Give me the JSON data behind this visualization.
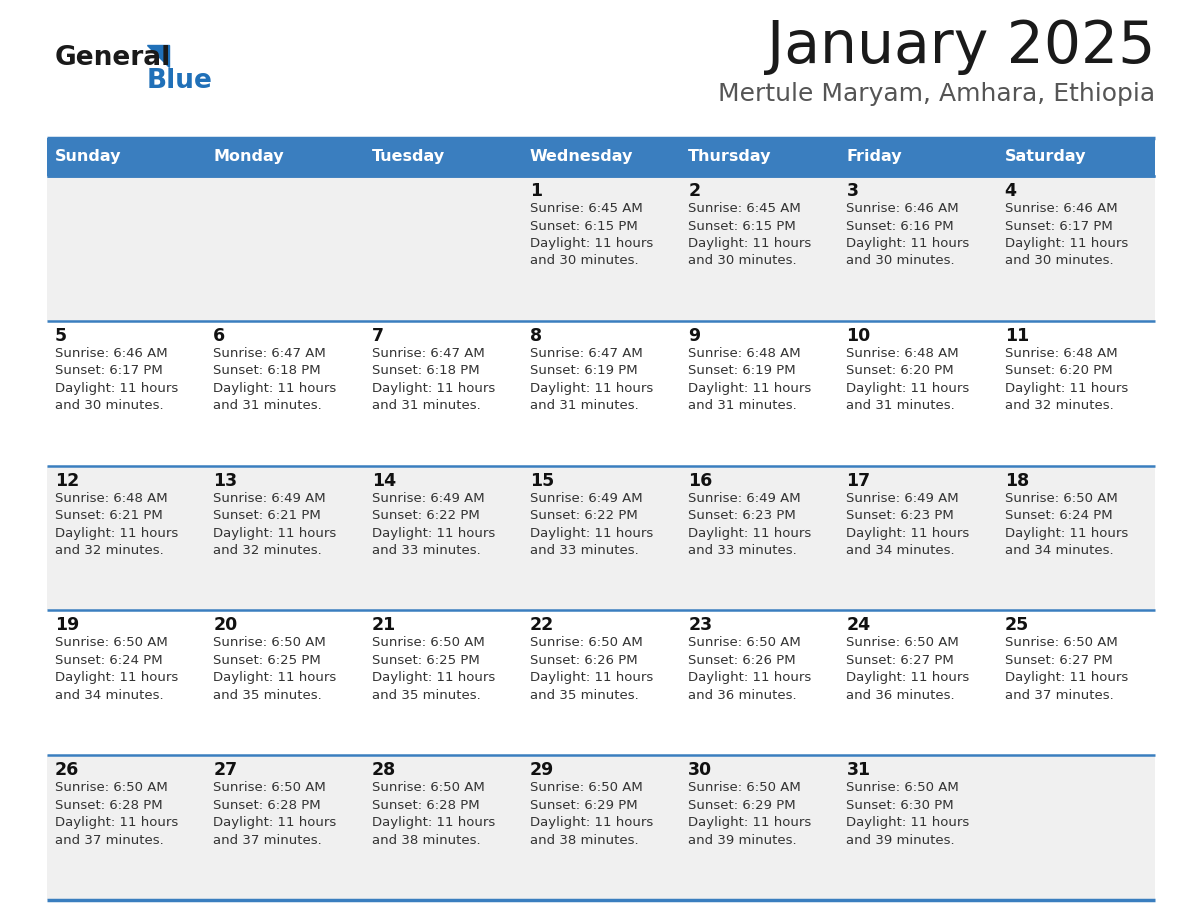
{
  "title": "January 2025",
  "subtitle": "Mertule Maryam, Amhara, Ethiopia",
  "days_of_week": [
    "Sunday",
    "Monday",
    "Tuesday",
    "Wednesday",
    "Thursday",
    "Friday",
    "Saturday"
  ],
  "header_bg": "#3a7ebf",
  "header_text": "#ffffff",
  "row_bg_even": "#f0f0f0",
  "row_bg_odd": "#ffffff",
  "cell_text_color": "#333333",
  "day_num_color": "#111111",
  "separator_color": "#3a7ebf",
  "title_color": "#1a1a1a",
  "subtitle_color": "#555555",
  "logo_general_color": "#1a1a1a",
  "logo_blue_color": "#2070b8",
  "logo_triangle_color": "#2070b8",
  "calendar_data": [
    [
      {
        "day": null,
        "sunrise": null,
        "sunset": null,
        "daylight_line1": null,
        "daylight_line2": null
      },
      {
        "day": null,
        "sunrise": null,
        "sunset": null,
        "daylight_line1": null,
        "daylight_line2": null
      },
      {
        "day": null,
        "sunrise": null,
        "sunset": null,
        "daylight_line1": null,
        "daylight_line2": null
      },
      {
        "day": "1",
        "sunrise": "Sunrise: 6:45 AM",
        "sunset": "Sunset: 6:15 PM",
        "daylight_line1": "Daylight: 11 hours",
        "daylight_line2": "and 30 minutes."
      },
      {
        "day": "2",
        "sunrise": "Sunrise: 6:45 AM",
        "sunset": "Sunset: 6:15 PM",
        "daylight_line1": "Daylight: 11 hours",
        "daylight_line2": "and 30 minutes."
      },
      {
        "day": "3",
        "sunrise": "Sunrise: 6:46 AM",
        "sunset": "Sunset: 6:16 PM",
        "daylight_line1": "Daylight: 11 hours",
        "daylight_line2": "and 30 minutes."
      },
      {
        "day": "4",
        "sunrise": "Sunrise: 6:46 AM",
        "sunset": "Sunset: 6:17 PM",
        "daylight_line1": "Daylight: 11 hours",
        "daylight_line2": "and 30 minutes."
      }
    ],
    [
      {
        "day": "5",
        "sunrise": "Sunrise: 6:46 AM",
        "sunset": "Sunset: 6:17 PM",
        "daylight_line1": "Daylight: 11 hours",
        "daylight_line2": "and 30 minutes."
      },
      {
        "day": "6",
        "sunrise": "Sunrise: 6:47 AM",
        "sunset": "Sunset: 6:18 PM",
        "daylight_line1": "Daylight: 11 hours",
        "daylight_line2": "and 31 minutes."
      },
      {
        "day": "7",
        "sunrise": "Sunrise: 6:47 AM",
        "sunset": "Sunset: 6:18 PM",
        "daylight_line1": "Daylight: 11 hours",
        "daylight_line2": "and 31 minutes."
      },
      {
        "day": "8",
        "sunrise": "Sunrise: 6:47 AM",
        "sunset": "Sunset: 6:19 PM",
        "daylight_line1": "Daylight: 11 hours",
        "daylight_line2": "and 31 minutes."
      },
      {
        "day": "9",
        "sunrise": "Sunrise: 6:48 AM",
        "sunset": "Sunset: 6:19 PM",
        "daylight_line1": "Daylight: 11 hours",
        "daylight_line2": "and 31 minutes."
      },
      {
        "day": "10",
        "sunrise": "Sunrise: 6:48 AM",
        "sunset": "Sunset: 6:20 PM",
        "daylight_line1": "Daylight: 11 hours",
        "daylight_line2": "and 31 minutes."
      },
      {
        "day": "11",
        "sunrise": "Sunrise: 6:48 AM",
        "sunset": "Sunset: 6:20 PM",
        "daylight_line1": "Daylight: 11 hours",
        "daylight_line2": "and 32 minutes."
      }
    ],
    [
      {
        "day": "12",
        "sunrise": "Sunrise: 6:48 AM",
        "sunset": "Sunset: 6:21 PM",
        "daylight_line1": "Daylight: 11 hours",
        "daylight_line2": "and 32 minutes."
      },
      {
        "day": "13",
        "sunrise": "Sunrise: 6:49 AM",
        "sunset": "Sunset: 6:21 PM",
        "daylight_line1": "Daylight: 11 hours",
        "daylight_line2": "and 32 minutes."
      },
      {
        "day": "14",
        "sunrise": "Sunrise: 6:49 AM",
        "sunset": "Sunset: 6:22 PM",
        "daylight_line1": "Daylight: 11 hours",
        "daylight_line2": "and 33 minutes."
      },
      {
        "day": "15",
        "sunrise": "Sunrise: 6:49 AM",
        "sunset": "Sunset: 6:22 PM",
        "daylight_line1": "Daylight: 11 hours",
        "daylight_line2": "and 33 minutes."
      },
      {
        "day": "16",
        "sunrise": "Sunrise: 6:49 AM",
        "sunset": "Sunset: 6:23 PM",
        "daylight_line1": "Daylight: 11 hours",
        "daylight_line2": "and 33 minutes."
      },
      {
        "day": "17",
        "sunrise": "Sunrise: 6:49 AM",
        "sunset": "Sunset: 6:23 PM",
        "daylight_line1": "Daylight: 11 hours",
        "daylight_line2": "and 34 minutes."
      },
      {
        "day": "18",
        "sunrise": "Sunrise: 6:50 AM",
        "sunset": "Sunset: 6:24 PM",
        "daylight_line1": "Daylight: 11 hours",
        "daylight_line2": "and 34 minutes."
      }
    ],
    [
      {
        "day": "19",
        "sunrise": "Sunrise: 6:50 AM",
        "sunset": "Sunset: 6:24 PM",
        "daylight_line1": "Daylight: 11 hours",
        "daylight_line2": "and 34 minutes."
      },
      {
        "day": "20",
        "sunrise": "Sunrise: 6:50 AM",
        "sunset": "Sunset: 6:25 PM",
        "daylight_line1": "Daylight: 11 hours",
        "daylight_line2": "and 35 minutes."
      },
      {
        "day": "21",
        "sunrise": "Sunrise: 6:50 AM",
        "sunset": "Sunset: 6:25 PM",
        "daylight_line1": "Daylight: 11 hours",
        "daylight_line2": "and 35 minutes."
      },
      {
        "day": "22",
        "sunrise": "Sunrise: 6:50 AM",
        "sunset": "Sunset: 6:26 PM",
        "daylight_line1": "Daylight: 11 hours",
        "daylight_line2": "and 35 minutes."
      },
      {
        "day": "23",
        "sunrise": "Sunrise: 6:50 AM",
        "sunset": "Sunset: 6:26 PM",
        "daylight_line1": "Daylight: 11 hours",
        "daylight_line2": "and 36 minutes."
      },
      {
        "day": "24",
        "sunrise": "Sunrise: 6:50 AM",
        "sunset": "Sunset: 6:27 PM",
        "daylight_line1": "Daylight: 11 hours",
        "daylight_line2": "and 36 minutes."
      },
      {
        "day": "25",
        "sunrise": "Sunrise: 6:50 AM",
        "sunset": "Sunset: 6:27 PM",
        "daylight_line1": "Daylight: 11 hours",
        "daylight_line2": "and 37 minutes."
      }
    ],
    [
      {
        "day": "26",
        "sunrise": "Sunrise: 6:50 AM",
        "sunset": "Sunset: 6:28 PM",
        "daylight_line1": "Daylight: 11 hours",
        "daylight_line2": "and 37 minutes."
      },
      {
        "day": "27",
        "sunrise": "Sunrise: 6:50 AM",
        "sunset": "Sunset: 6:28 PM",
        "daylight_line1": "Daylight: 11 hours",
        "daylight_line2": "and 37 minutes."
      },
      {
        "day": "28",
        "sunrise": "Sunrise: 6:50 AM",
        "sunset": "Sunset: 6:28 PM",
        "daylight_line1": "Daylight: 11 hours",
        "daylight_line2": "and 38 minutes."
      },
      {
        "day": "29",
        "sunrise": "Sunrise: 6:50 AM",
        "sunset": "Sunset: 6:29 PM",
        "daylight_line1": "Daylight: 11 hours",
        "daylight_line2": "and 38 minutes."
      },
      {
        "day": "30",
        "sunrise": "Sunrise: 6:50 AM",
        "sunset": "Sunset: 6:29 PM",
        "daylight_line1": "Daylight: 11 hours",
        "daylight_line2": "and 39 minutes."
      },
      {
        "day": "31",
        "sunrise": "Sunrise: 6:50 AM",
        "sunset": "Sunset: 6:30 PM",
        "daylight_line1": "Daylight: 11 hours",
        "daylight_line2": "and 39 minutes."
      },
      {
        "day": null,
        "sunrise": null,
        "sunset": null,
        "daylight_line1": null,
        "daylight_line2": null
      }
    ]
  ]
}
